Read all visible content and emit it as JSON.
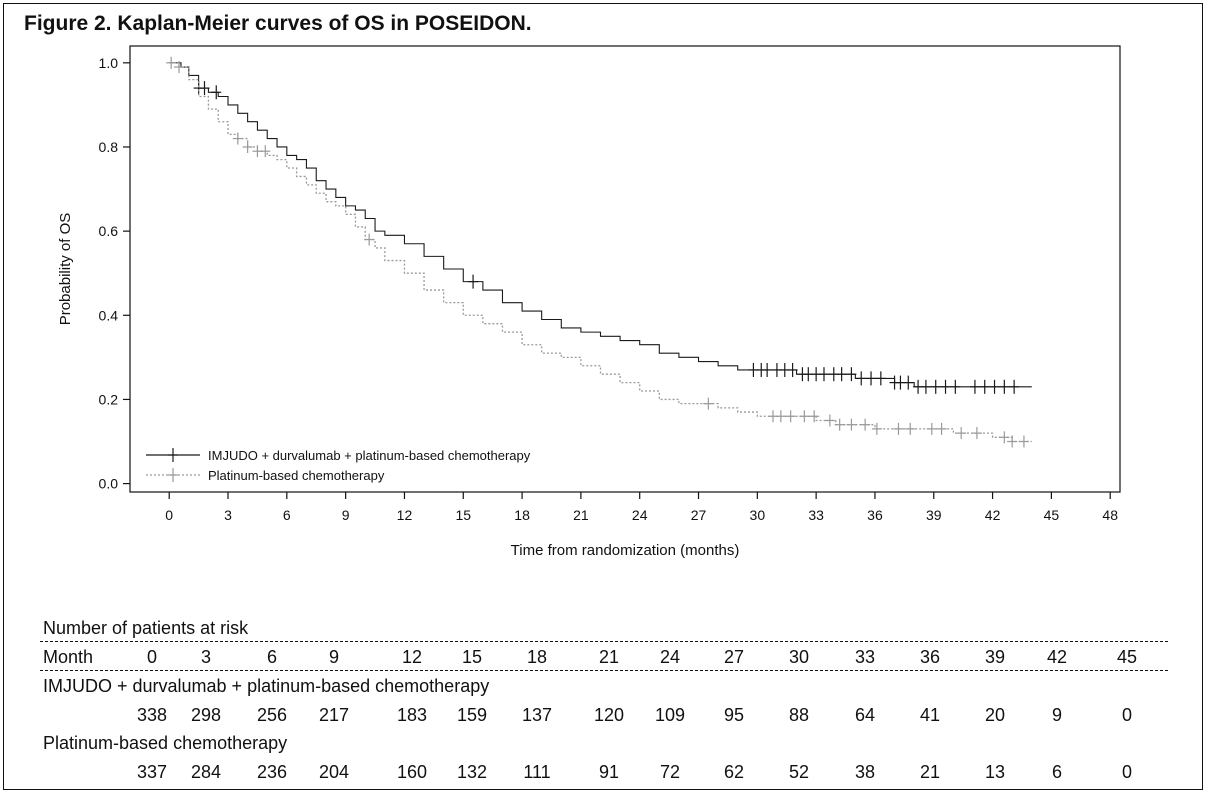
{
  "figure_title": "Figure 2. Kaplan-Meier curves of OS in POSEIDON.",
  "chart_data": {
    "type": "line",
    "step": true,
    "xlabel": "Time from randomization (months)",
    "ylabel": "Probability of OS",
    "xlim": [
      -2,
      48.5
    ],
    "ylim": [
      -0.02,
      1.04
    ],
    "xticks": [
      "0",
      "3",
      "6",
      "9",
      "12",
      "15",
      "18",
      "21",
      "24",
      "27",
      "30",
      "33",
      "36",
      "39",
      "42",
      "45",
      "48"
    ],
    "yticks": [
      "0.0",
      "0.2",
      "0.4",
      "0.6",
      "0.8",
      "1.0"
    ],
    "legend_position": "bottom-left",
    "series": [
      {
        "name": "IMJUDO + durvalumab + platinum-based chemotherapy",
        "style": "solid",
        "color": "#1a1a1a",
        "x": [
          0,
          0.6,
          1.0,
          1.5,
          2.0,
          2.5,
          3.0,
          3.5,
          4.0,
          4.5,
          5.0,
          5.5,
          6.0,
          6.5,
          7.0,
          7.5,
          8.0,
          8.5,
          9.0,
          9.5,
          10.0,
          10.5,
          11.0,
          12.0,
          13.0,
          14.0,
          15.0,
          16.0,
          17.0,
          18.0,
          19.0,
          20.0,
          21.0,
          22.0,
          23.0,
          24.0,
          25.0,
          26.0,
          27.0,
          28.0,
          29.0,
          30.0,
          31.0,
          32.0,
          33.0,
          34.0,
          35.0,
          36.0,
          37.0,
          38.0,
          39.0,
          40.0,
          41.0,
          42.0,
          43.0,
          44.0
        ],
        "y": [
          1.0,
          0.99,
          0.97,
          0.94,
          0.93,
          0.92,
          0.9,
          0.88,
          0.86,
          0.84,
          0.82,
          0.8,
          0.78,
          0.77,
          0.75,
          0.72,
          0.7,
          0.68,
          0.66,
          0.65,
          0.63,
          0.6,
          0.59,
          0.57,
          0.54,
          0.51,
          0.48,
          0.46,
          0.43,
          0.41,
          0.39,
          0.37,
          0.36,
          0.35,
          0.34,
          0.33,
          0.31,
          0.3,
          0.29,
          0.28,
          0.27,
          0.27,
          0.27,
          0.26,
          0.26,
          0.26,
          0.25,
          0.25,
          0.24,
          0.23,
          0.23,
          0.23,
          0.23,
          0.23,
          0.23,
          0.23
        ],
        "censored_x": [
          1.5,
          1.8,
          2.4,
          15.5,
          29.8,
          30.2,
          30.5,
          31.0,
          31.4,
          31.8,
          32.3,
          32.6,
          33.0,
          33.4,
          33.9,
          34.3,
          34.8,
          35.3,
          35.8,
          36.3,
          37.0,
          37.3,
          37.7,
          38.2,
          38.6,
          39.1,
          39.6,
          40.1,
          41.1,
          41.6,
          42.1,
          42.6,
          43.1
        ]
      },
      {
        "name": "Platinum-based chemotherapy",
        "style": "dotted",
        "color": "#9a9a9a",
        "x": [
          0,
          0.5,
          1.0,
          1.5,
          2.0,
          2.5,
          3.0,
          3.5,
          4.0,
          4.5,
          5.0,
          5.5,
          6.0,
          6.5,
          7.0,
          7.5,
          8.0,
          8.5,
          9.0,
          9.5,
          10.0,
          10.5,
          11.0,
          12.0,
          13.0,
          14.0,
          15.0,
          16.0,
          17.0,
          18.0,
          19.0,
          20.0,
          21.0,
          22.0,
          23.0,
          24.0,
          25.0,
          26.0,
          27.0,
          28.0,
          29.0,
          30.0,
          31.0,
          32.0,
          33.0,
          34.0,
          35.0,
          36.0,
          37.0,
          38.0,
          39.0,
          40.0,
          41.0,
          42.0,
          43.0,
          44.0
        ],
        "y": [
          1.0,
          0.99,
          0.96,
          0.92,
          0.89,
          0.86,
          0.83,
          0.82,
          0.8,
          0.79,
          0.78,
          0.77,
          0.75,
          0.73,
          0.71,
          0.69,
          0.67,
          0.66,
          0.64,
          0.61,
          0.58,
          0.56,
          0.53,
          0.5,
          0.46,
          0.43,
          0.4,
          0.38,
          0.36,
          0.33,
          0.31,
          0.3,
          0.28,
          0.26,
          0.24,
          0.22,
          0.2,
          0.19,
          0.19,
          0.18,
          0.17,
          0.16,
          0.16,
          0.16,
          0.15,
          0.14,
          0.14,
          0.13,
          0.13,
          0.13,
          0.13,
          0.12,
          0.12,
          0.11,
          0.1,
          0.1
        ],
        "censored_x": [
          0.1,
          0.5,
          3.5,
          4.0,
          4.5,
          4.9,
          10.2,
          27.5,
          30.8,
          31.2,
          31.7,
          32.4,
          32.9,
          33.7,
          34.2,
          34.8,
          35.5,
          36.1,
          37.2,
          37.8,
          38.9,
          39.4,
          40.4,
          41.2,
          42.6,
          43.0,
          43.6
        ]
      }
    ]
  },
  "risk_table": {
    "heading": "Number of patients at risk",
    "month_label": "Month",
    "months": [
      "0",
      "3",
      "6",
      "9",
      "12",
      "15",
      "18",
      "21",
      "24",
      "27",
      "30",
      "33",
      "36",
      "39",
      "42",
      "45"
    ],
    "rows": [
      {
        "label": "IMJUDO + durvalumab + platinum-based chemotherapy",
        "values": [
          "338",
          "298",
          "256",
          "217",
          "183",
          "159",
          "137",
          "120",
          "109",
          "95",
          "88",
          "64",
          "41",
          "20",
          "9",
          "0"
        ]
      },
      {
        "label": "Platinum-based chemotherapy",
        "values": [
          "337",
          "284",
          "236",
          "204",
          "160",
          "132",
          "111",
          "91",
          "72",
          "62",
          "52",
          "38",
          "21",
          "13",
          "6",
          "0"
        ]
      }
    ]
  }
}
